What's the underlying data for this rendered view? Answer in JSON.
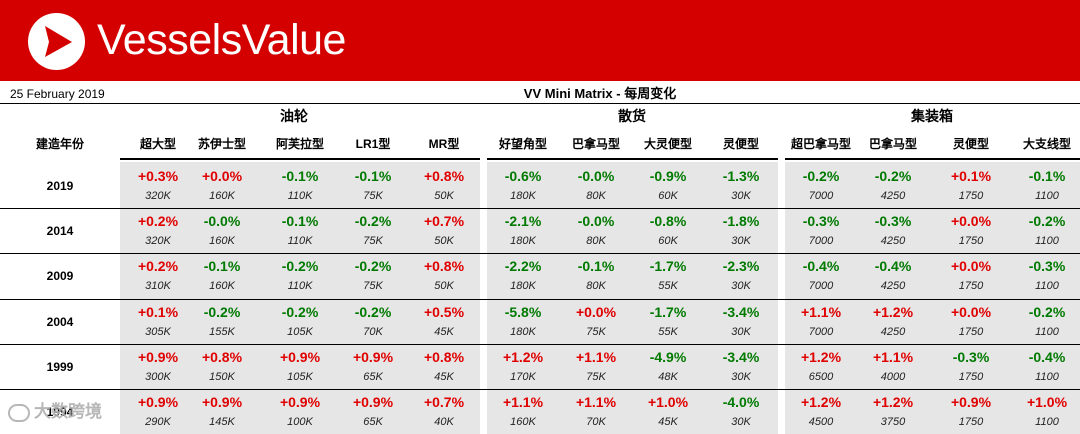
{
  "brand": {
    "name": "VesselsValue",
    "logo_icon": "vv-triangle-logo-icon"
  },
  "report": {
    "date": "25 February 2019",
    "title": "VV Mini Matrix - 每周变化"
  },
  "groups": [
    {
      "label": "油轮"
    },
    {
      "label": "散货"
    },
    {
      "label": "集装箱"
    }
  ],
  "year_header": "建造年份",
  "columns": [
    "超大型",
    "苏伊士型",
    "阿芙拉型",
    "LR1型",
    "MR型",
    "好望角型",
    "巴拿马型",
    "大灵便型",
    "灵便型",
    "超巴拿马型",
    "巴拿马型",
    "灵便型",
    "大支线型"
  ],
  "rows": [
    {
      "year": "2019",
      "changes": [
        "+0.3%",
        "+0.0%",
        "-0.1%",
        "-0.1%",
        "+0.8%",
        "-0.6%",
        "-0.0%",
        "-0.9%",
        "-1.3%",
        "-0.2%",
        "-0.2%",
        "+0.1%",
        "-0.1%"
      ],
      "values": [
        "320K",
        "160K",
        "110K",
        "75K",
        "50K",
        "180K",
        "80K",
        "60K",
        "30K",
        "7000",
        "4250",
        "1750",
        "1100"
      ]
    },
    {
      "year": "2014",
      "changes": [
        "+0.2%",
        "-0.0%",
        "-0.1%",
        "-0.2%",
        "+0.7%",
        "-2.1%",
        "-0.0%",
        "-0.8%",
        "-1.8%",
        "-0.3%",
        "-0.3%",
        "+0.0%",
        "-0.2%"
      ],
      "values": [
        "320K",
        "160K",
        "110K",
        "75K",
        "50K",
        "180K",
        "80K",
        "60K",
        "30K",
        "7000",
        "4250",
        "1750",
        "1100"
      ]
    },
    {
      "year": "2009",
      "changes": [
        "+0.2%",
        "-0.1%",
        "-0.2%",
        "-0.2%",
        "+0.8%",
        "-2.2%",
        "-0.1%",
        "-1.7%",
        "-2.3%",
        "-0.4%",
        "-0.4%",
        "+0.0%",
        "-0.3%"
      ],
      "values": [
        "310K",
        "160K",
        "110K",
        "75K",
        "50K",
        "180K",
        "80K",
        "55K",
        "30K",
        "7000",
        "4250",
        "1750",
        "1100"
      ]
    },
    {
      "year": "2004",
      "changes": [
        "+0.1%",
        "-0.2%",
        "-0.2%",
        "-0.2%",
        "+0.5%",
        "-5.8%",
        "+0.0%",
        "-1.7%",
        "-3.4%",
        "+1.1%",
        "+1.2%",
        "+0.0%",
        "-0.2%"
      ],
      "values": [
        "305K",
        "155K",
        "105K",
        "70K",
        "45K",
        "180K",
        "75K",
        "55K",
        "30K",
        "7000",
        "4250",
        "1750",
        "1100"
      ]
    },
    {
      "year": "1999",
      "changes": [
        "+0.9%",
        "+0.8%",
        "+0.9%",
        "+0.9%",
        "+0.8%",
        "+1.2%",
        "+1.1%",
        "-4.9%",
        "-3.4%",
        "+1.2%",
        "+1.1%",
        "-0.3%",
        "-0.4%"
      ],
      "values": [
        "300K",
        "150K",
        "105K",
        "65K",
        "45K",
        "170K",
        "75K",
        "48K",
        "30K",
        "6500",
        "4000",
        "1750",
        "1100"
      ]
    },
    {
      "year": "1994",
      "changes": [
        "+0.9%",
        "+0.9%",
        "+0.9%",
        "+0.9%",
        "+0.7%",
        "+1.1%",
        "+1.1%",
        "+1.0%",
        "-4.0%",
        "+1.2%",
        "+1.2%",
        "+0.9%",
        "+1.0%"
      ],
      "values": [
        "290K",
        "145K",
        "100K",
        "65K",
        "40K",
        "160K",
        "70K",
        "45K",
        "30K",
        "4500",
        "3750",
        "1750",
        "1100"
      ]
    }
  ],
  "colors": {
    "banner": "#d40000",
    "positive": "#e00000",
    "negative": "#007a00",
    "shade": "#e6e6e6"
  },
  "watermark": {
    "text": "大数跨境",
    "icon": "chat-bubble-icon"
  }
}
